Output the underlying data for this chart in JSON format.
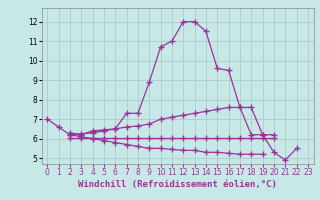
{
  "title": "",
  "xlabel": "Windchill (Refroidissement éolien,°C)",
  "ylabel": "",
  "bg_color": "#c8e8e8",
  "line_color": "#993399",
  "grid_color": "#b0d0d0",
  "xlim": [
    -0.5,
    23.5
  ],
  "ylim": [
    4.7,
    12.7
  ],
  "xticks": [
    0,
    1,
    2,
    3,
    4,
    5,
    6,
    7,
    8,
    9,
    10,
    11,
    12,
    13,
    14,
    15,
    16,
    17,
    18,
    19,
    20,
    21,
    22,
    23
  ],
  "yticks": [
    5,
    6,
    7,
    8,
    9,
    10,
    11,
    12
  ],
  "series": [
    {
      "x": [
        0,
        1,
        2,
        3,
        4,
        5,
        6,
        7,
        8,
        9,
        10,
        11,
        12,
        13,
        14,
        15,
        16,
        17,
        18,
        19,
        20,
        21,
        22
      ],
      "y": [
        7.0,
        6.6,
        6.2,
        6.25,
        6.3,
        6.4,
        6.5,
        7.3,
        7.3,
        8.9,
        10.7,
        11.0,
        12.0,
        12.0,
        11.5,
        9.6,
        9.5,
        7.6,
        6.2,
        6.2,
        5.3,
        4.9,
        5.5
      ]
    },
    {
      "x": [
        2,
        3,
        4,
        5,
        6,
        7,
        8,
        9,
        10,
        11,
        12,
        13,
        14,
        15,
        16,
        17,
        18,
        19,
        20
      ],
      "y": [
        6.3,
        6.2,
        6.4,
        6.45,
        6.5,
        6.6,
        6.65,
        6.75,
        7.0,
        7.1,
        7.2,
        7.3,
        7.4,
        7.5,
        7.6,
        7.6,
        7.6,
        6.2,
        6.2
      ]
    },
    {
      "x": [
        2,
        3,
        4,
        5,
        6,
        7,
        8,
        9,
        10,
        11,
        12,
        13,
        14,
        15,
        16,
        17,
        18,
        19,
        20
      ],
      "y": [
        6.05,
        6.05,
        6.05,
        6.05,
        6.05,
        6.05,
        6.05,
        6.05,
        6.05,
        6.05,
        6.05,
        6.05,
        6.05,
        6.05,
        6.05,
        6.05,
        6.05,
        6.05,
        6.05
      ]
    },
    {
      "x": [
        2,
        3,
        4,
        5,
        6,
        7,
        8,
        9,
        10,
        11,
        12,
        13,
        14,
        15,
        16,
        17,
        18,
        19
      ],
      "y": [
        6.2,
        6.1,
        6.0,
        5.9,
        5.8,
        5.7,
        5.6,
        5.5,
        5.5,
        5.45,
        5.4,
        5.4,
        5.3,
        5.3,
        5.25,
        5.2,
        5.2,
        5.2
      ]
    }
  ],
  "marker": "+",
  "markersize": 4,
  "linewidth": 0.9,
  "xlabel_fontsize": 6.5,
  "tick_fontsize": 5.5,
  "xlabel_color": "#993399"
}
